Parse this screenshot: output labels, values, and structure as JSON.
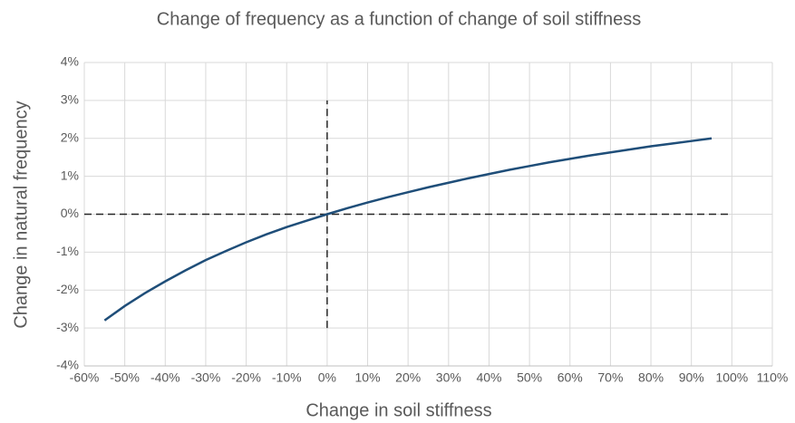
{
  "chart_data": {
    "type": "line",
    "title": "Change of frequency as a function of change of soil stiffness",
    "x_label": "Change in soil stiffness",
    "y_label": "Change in natural frequency",
    "x": [
      -55,
      -50,
      -45,
      -40,
      -35,
      -30,
      -25,
      -20,
      -15,
      -10,
      -5,
      0,
      5,
      10,
      15,
      20,
      25,
      30,
      35,
      40,
      45,
      50,
      55,
      60,
      65,
      70,
      75,
      80,
      85,
      90,
      95
    ],
    "series": [
      {
        "color": "#1f4e79",
        "values": [
          -2.8,
          -2.42,
          -2.08,
          -1.77,
          -1.48,
          -1.21,
          -0.97,
          -0.74,
          -0.53,
          -0.34,
          -0.17,
          0,
          0.16,
          0.31,
          0.45,
          0.58,
          0.71,
          0.83,
          0.95,
          1.06,
          1.17,
          1.27,
          1.37,
          1.46,
          1.55,
          1.63,
          1.71,
          1.79,
          1.86,
          1.93,
          2.0
        ]
      }
    ],
    "reference_lines": [
      {
        "x": [
          0,
          0
        ],
        "y": [
          -3,
          3
        ],
        "color": "#262626"
      },
      {
        "x": [
          -60,
          100
        ],
        "y": [
          0,
          0
        ],
        "color": "#262626"
      }
    ],
    "xlim": [
      -60,
      110
    ],
    "ylim": [
      -4,
      4
    ],
    "xticks": [
      {
        "value": -60,
        "label": "-60%"
      },
      {
        "value": -50,
        "label": "-50%"
      },
      {
        "value": -40,
        "label": "-40%"
      },
      {
        "value": -30,
        "label": "-30%"
      },
      {
        "value": -20,
        "label": "-20%"
      },
      {
        "value": -10,
        "label": "-10%"
      },
      {
        "value": 0,
        "label": "0%"
      },
      {
        "value": 10,
        "label": "10%"
      },
      {
        "value": 20,
        "label": "20%"
      },
      {
        "value": 30,
        "label": "30%"
      },
      {
        "value": 40,
        "label": "40%"
      },
      {
        "value": 50,
        "label": "50%"
      },
      {
        "value": 60,
        "label": "60%"
      },
      {
        "value": 70,
        "label": "70%"
      },
      {
        "value": 80,
        "label": "80%"
      },
      {
        "value": 90,
        "label": "90%"
      },
      {
        "value": 100,
        "label": "100%"
      },
      {
        "value": 110,
        "label": "110%"
      }
    ],
    "yticks": [
      {
        "value": -4,
        "label": "-4%"
      },
      {
        "value": -3,
        "label": "-3%"
      },
      {
        "value": -2,
        "label": "-2%"
      },
      {
        "value": -1,
        "label": "-1%"
      },
      {
        "value": 0,
        "label": "0%"
      },
      {
        "value": 1,
        "label": "1%"
      },
      {
        "value": 2,
        "label": "2%"
      },
      {
        "value": 3,
        "label": "3%"
      },
      {
        "value": 4,
        "label": "4%"
      }
    ],
    "grid": true
  }
}
